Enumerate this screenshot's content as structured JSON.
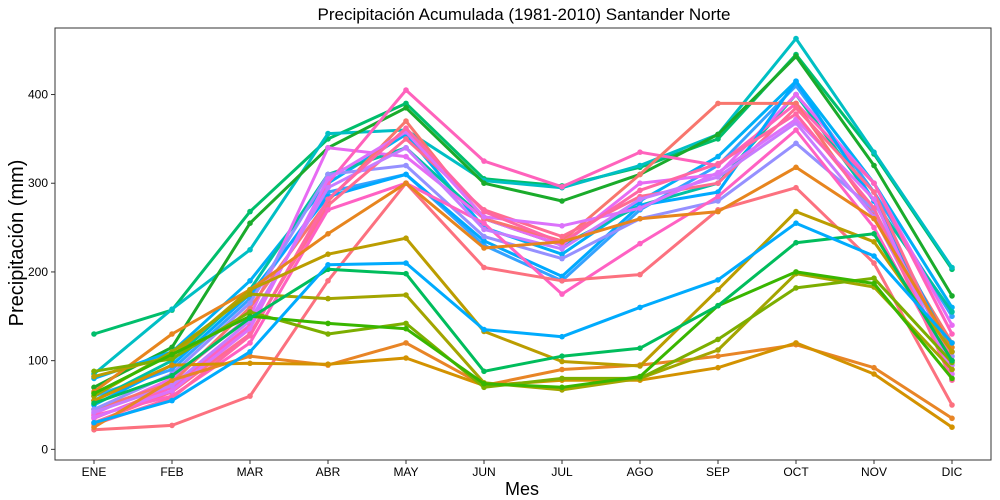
{
  "chart_data": {
    "type": "line",
    "title": "Precipitación Acumulada (1981-2010)  Santander Norte",
    "xlabel": "Mes",
    "ylabel": "Precipitación  (mm)",
    "categories": [
      "ENE",
      "FEB",
      "MAR",
      "ABR",
      "MAY",
      "JUN",
      "JUL",
      "AGO",
      "SEP",
      "OCT",
      "NOV",
      "DIC"
    ],
    "yticks": [
      0,
      100,
      200,
      300,
      400
    ],
    "ylim": [
      -12,
      475
    ],
    "grid": false,
    "legend": "none",
    "series": [
      {
        "color": "#00BE6C",
        "values": [
          130,
          157,
          268,
          350,
          390,
          305,
          297,
          318,
          350,
          445,
          333,
          203
        ]
      },
      {
        "color": "#00BFC4",
        "values": [
          85,
          158,
          225,
          356,
          360,
          303,
          295,
          320,
          355,
          463,
          335,
          205
        ]
      },
      {
        "color": "#1AAB2B",
        "values": [
          70,
          115,
          255,
          340,
          385,
          300,
          280,
          310,
          355,
          443,
          320,
          173
        ]
      },
      {
        "color": "#00B0F6",
        "values": [
          80,
          110,
          190,
          300,
          355,
          250,
          220,
          280,
          330,
          415,
          300,
          160
        ]
      },
      {
        "color": "#35A2FF",
        "values": [
          60,
          90,
          170,
          290,
          310,
          230,
          190,
          270,
          320,
          410,
          290,
          150
        ]
      },
      {
        "color": "#00C1A3",
        "values": [
          55,
          100,
          180,
          310,
          340,
          260,
          230,
          275,
          300,
          400,
          280,
          155
        ]
      },
      {
        "color": "#E76BF3",
        "values": [
          40,
          80,
          150,
          340,
          330,
          260,
          230,
          300,
          310,
          400,
          300,
          140
        ]
      },
      {
        "color": "#FF62BC",
        "values": [
          35,
          70,
          140,
          300,
          405,
          325,
          296,
          335,
          320,
          390,
          300,
          130
        ]
      },
      {
        "color": "#F8766D",
        "values": [
          45,
          75,
          160,
          280,
          370,
          260,
          235,
          310,
          390,
          390,
          265,
          120
        ]
      },
      {
        "color": "#00A9FF",
        "values": [
          50,
          95,
          175,
          285,
          310,
          235,
          195,
          275,
          290,
          415,
          280,
          110
        ]
      },
      {
        "color": "#9590FF",
        "values": [
          45,
          85,
          165,
          310,
          320,
          240,
          215,
          260,
          280,
          345,
          270,
          105
        ]
      },
      {
        "color": "#FF6C91",
        "values": [
          30,
          65,
          130,
          275,
          350,
          270,
          240,
          285,
          300,
          385,
          290,
          100
        ]
      },
      {
        "color": "#FF61C3",
        "values": [
          38,
          60,
          120,
          270,
          300,
          255,
          175,
          232,
          285,
          360,
          250,
          90
        ]
      },
      {
        "color": "#C77CFF",
        "values": [
          42,
          72,
          145,
          295,
          340,
          248,
          226,
          282,
          307,
          368,
          262,
          95
        ]
      },
      {
        "color": "#DB72FB",
        "values": [
          36,
          66,
          136,
          305,
          358,
          262,
          252,
          272,
          312,
          372,
          282,
          85
        ]
      },
      {
        "color": "#FF67A4",
        "values": [
          28,
          58,
          128,
          282,
          362,
          268,
          233,
          292,
          322,
          378,
          272,
          78
        ]
      },
      {
        "color": "#FC717F",
        "values": [
          22,
          27,
          60,
          190,
          300,
          205,
          190,
          197,
          270,
          295,
          210,
          50
        ]
      },
      {
        "color": "#E7851E",
        "values": [
          65,
          130,
          180,
          243,
          300,
          227,
          234,
          260,
          268,
          318,
          260,
          115
        ]
      },
      {
        "color": "#E88526",
        "values": [
          25,
          78,
          105,
          95,
          120,
          72,
          90,
          95,
          105,
          118,
          92,
          35
        ]
      },
      {
        "color": "#D39200",
        "values": [
          55,
          95,
          97,
          96,
          103,
          72,
          78,
          78,
          92,
          120,
          85,
          25
        ]
      },
      {
        "color": "#BB9D00",
        "values": [
          82,
          105,
          180,
          220,
          238,
          133,
          99,
          94,
          180,
          268,
          234,
          110
        ]
      },
      {
        "color": "#A3A500",
        "values": [
          60,
          110,
          175,
          170,
          174,
          75,
          67,
          80,
          112,
          198,
          183,
          90
        ]
      },
      {
        "color": "#7CAE00",
        "values": [
          88,
          102,
          155,
          130,
          142,
          70,
          80,
          80,
          124,
          182,
          193,
          98
        ]
      },
      {
        "color": "#39B600",
        "values": [
          63,
          107,
          150,
          142,
          136,
          74,
          70,
          82,
          162,
          200,
          187,
          80
        ]
      },
      {
        "color": "#00BD5C",
        "values": [
          52,
          83,
          148,
          203,
          198,
          88,
          105,
          114,
          162,
          233,
          243,
          100
        ]
      },
      {
        "color": "#00ABFD",
        "values": [
          30,
          55,
          110,
          208,
          210,
          135,
          127,
          160,
          191,
          255,
          218,
          120
        ]
      }
    ]
  }
}
